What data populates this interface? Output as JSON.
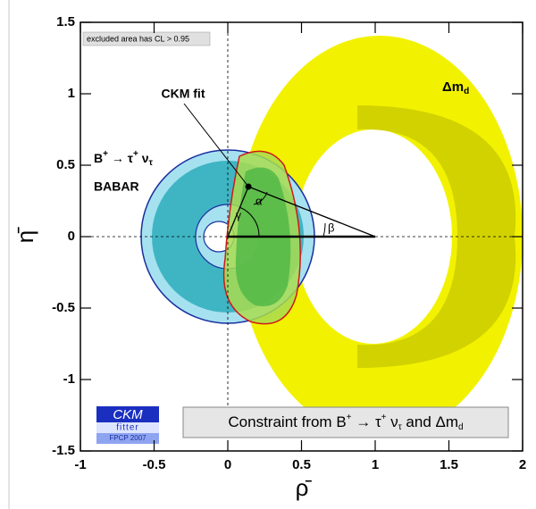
{
  "chart_data": {
    "type": "scatter",
    "x_label": "ρ̄",
    "y_label": "η̄",
    "xlim": [
      -1,
      2
    ],
    "ylim": [
      -1.5,
      1.5
    ],
    "xticks": [
      -1,
      -0.5,
      0,
      0.5,
      1,
      1.5,
      2
    ],
    "yticks": [
      -1.5,
      -1,
      -0.5,
      0,
      0.5,
      1,
      1.5
    ],
    "series": [
      {
        "name": "CKM fit",
        "color": "#000000",
        "x": [
          0.14
        ],
        "values": [
          0.35
        ]
      }
    ],
    "annotations": {
      "legend_note": "excluded area has CL > 0.95",
      "dmd": [
        "Δm",
        "d"
      ],
      "btau": [
        "B",
        "+",
        " → τ",
        "+",
        " ν",
        "τ"
      ],
      "babar": "BABAR",
      "alpha": "α",
      "beta": "β",
      "gamma": "γ",
      "constraint": [
        "Constraint from B",
        "+",
        " → τ",
        "+",
        " ν",
        "τ",
        " and Δm",
        "d"
      ],
      "logo": [
        "CKM",
        "fitter",
        "FPCP 2007"
      ]
    }
  }
}
